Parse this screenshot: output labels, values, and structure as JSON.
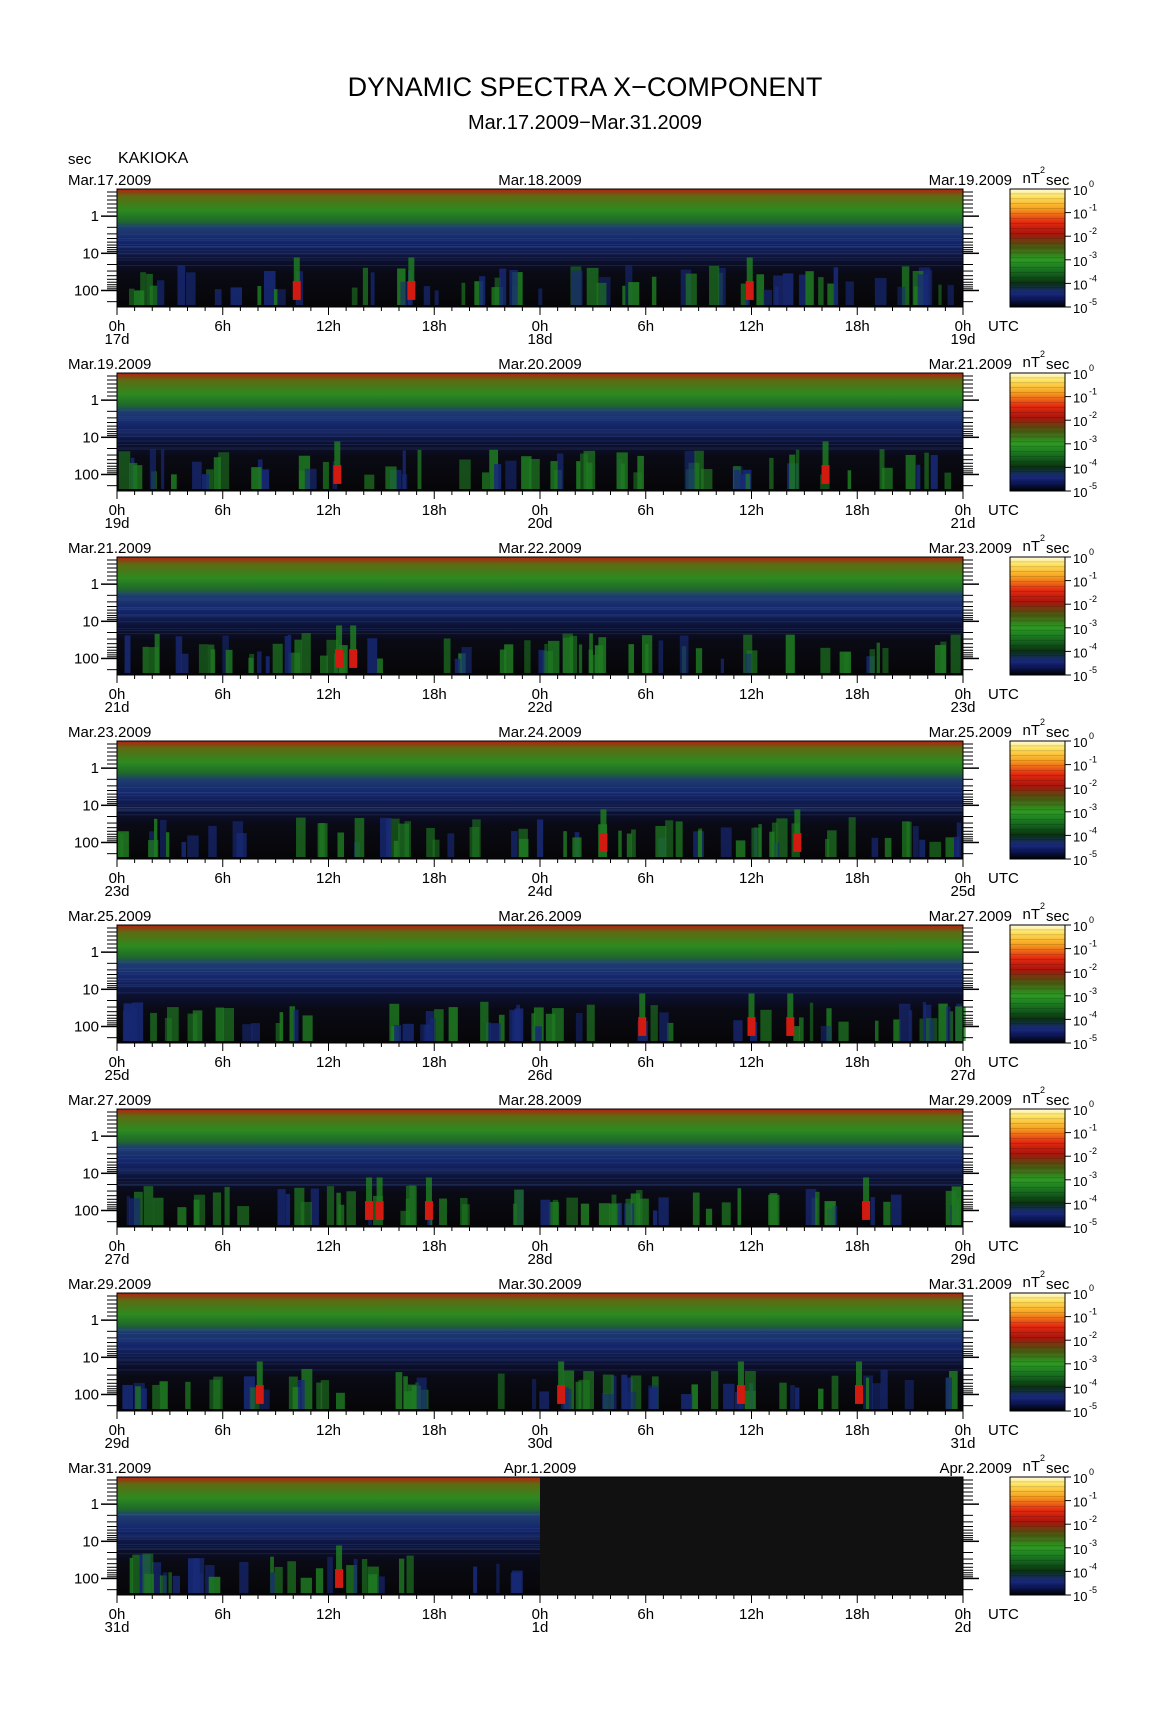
{
  "header": {
    "title": "DYNAMIC SPECTRA X−COMPONENT",
    "subtitle": "Mar.17.2009−Mar.31.2009",
    "y_unit": "sec",
    "station": "KAKIOKA",
    "x_unit": "UTC",
    "colorbar_unit": "nT",
    "colorbar_unit_sup": "2",
    "colorbar_unit_suffix": "sec"
  },
  "chart_data": {
    "type": "heatmap",
    "y_axis": {
      "label": "sec",
      "scale": "log",
      "ticks": [
        "1",
        "10",
        "100"
      ]
    },
    "x_ticks": [
      "0h",
      "6h",
      "12h",
      "18h",
      "0h",
      "6h",
      "12h",
      "18h",
      "0h"
    ],
    "colorbar": {
      "scale": "log",
      "ticks": [
        "10",
        "10",
        "10",
        "10",
        "10",
        "10"
      ],
      "exponents": [
        "0",
        "-1",
        "-2",
        "-3",
        "-4",
        "-5"
      ]
    },
    "colors": {
      "background": "#0a0a12",
      "low": "#182a78",
      "mid": "#1f7a22",
      "high": "#d11b10",
      "peak": "#f7d600",
      "no_data": "#111111"
    },
    "panels": [
      {
        "date_left": "Mar.17.2009",
        "date_mid": "Mar.18.2009",
        "date_right": "Mar.19.2009",
        "day_labels": [
          "17d",
          "18d",
          "19d"
        ],
        "data_until": 1.0,
        "red_events": [
          10.2,
          16.7,
          35.9
        ]
      },
      {
        "date_left": "Mar.19.2009",
        "date_mid": "Mar.20.2009",
        "date_right": "Mar.21.2009",
        "day_labels": [
          "19d",
          "20d",
          "21d"
        ],
        "data_until": 1.0,
        "red_events": [
          12.5,
          40.2
        ]
      },
      {
        "date_left": "Mar.21.2009",
        "date_mid": "Mar.22.2009",
        "date_right": "Mar.23.2009",
        "day_labels": [
          "21d",
          "22d",
          "23d"
        ],
        "data_until": 1.0,
        "red_events": [
          12.6,
          13.4
        ]
      },
      {
        "date_left": "Mar.23.2009",
        "date_mid": "Mar.24.2009",
        "date_right": "Mar.25.2009",
        "day_labels": [
          "23d",
          "24d",
          "25d"
        ],
        "data_until": 1.0,
        "red_events": [
          27.6,
          38.6
        ]
      },
      {
        "date_left": "Mar.25.2009",
        "date_mid": "Mar.26.2009",
        "date_right": "Mar.27.2009",
        "day_labels": [
          "25d",
          "26d",
          "27d"
        ],
        "data_until": 1.0,
        "red_events": [
          29.8,
          36.0,
          38.2
        ]
      },
      {
        "date_left": "Mar.27.2009",
        "date_mid": "Mar.28.2009",
        "date_right": "Mar.29.2009",
        "day_labels": [
          "27d",
          "28d",
          "29d"
        ],
        "data_until": 1.0,
        "red_events": [
          14.3,
          14.9,
          17.7,
          42.5
        ]
      },
      {
        "date_left": "Mar.29.2009",
        "date_mid": "Mar.30.2009",
        "date_right": "Mar.31.2009",
        "day_labels": [
          "29d",
          "30d",
          "31d"
        ],
        "data_until": 1.0,
        "red_events": [
          8.1,
          25.2,
          35.4,
          42.1
        ]
      },
      {
        "date_left": "Mar.31.2009",
        "date_mid": "Apr.1.2009",
        "date_right": "Apr.2.2009",
        "day_labels": [
          "31d",
          "1d",
          "2d"
        ],
        "data_until": 0.5,
        "red_events": [
          12.6
        ]
      }
    ]
  }
}
